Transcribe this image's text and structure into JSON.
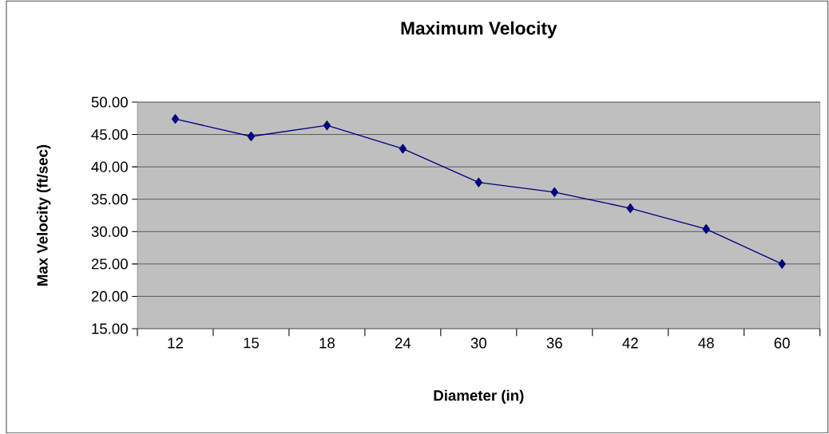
{
  "chart_data": {
    "type": "line",
    "title": "Maximum Velocity",
    "xlabel": "Diameter (in)",
    "ylabel": "Max Velocity (ft/sec)",
    "categories": [
      "12",
      "15",
      "18",
      "24",
      "30",
      "36",
      "42",
      "48",
      "60"
    ],
    "series": [
      {
        "color": "#000080",
        "values": [
          47.4,
          44.7,
          46.4,
          42.8,
          37.6,
          36.1,
          33.6,
          30.4,
          25.0
        ]
      }
    ],
    "ylim": [
      15,
      50
    ],
    "yticks": [
      {
        "value": 15,
        "label": "15.00"
      },
      {
        "value": 20,
        "label": "20.00"
      },
      {
        "value": 25,
        "label": "25.00"
      },
      {
        "value": 30,
        "label": "30.00"
      },
      {
        "value": 35,
        "label": "35.00"
      },
      {
        "value": 40,
        "label": "40.00"
      },
      {
        "value": 45,
        "label": "45.00"
      },
      {
        "value": 50,
        "label": "50.00"
      }
    ],
    "grid": "y",
    "marker": "diamond",
    "line_style": "solid"
  }
}
